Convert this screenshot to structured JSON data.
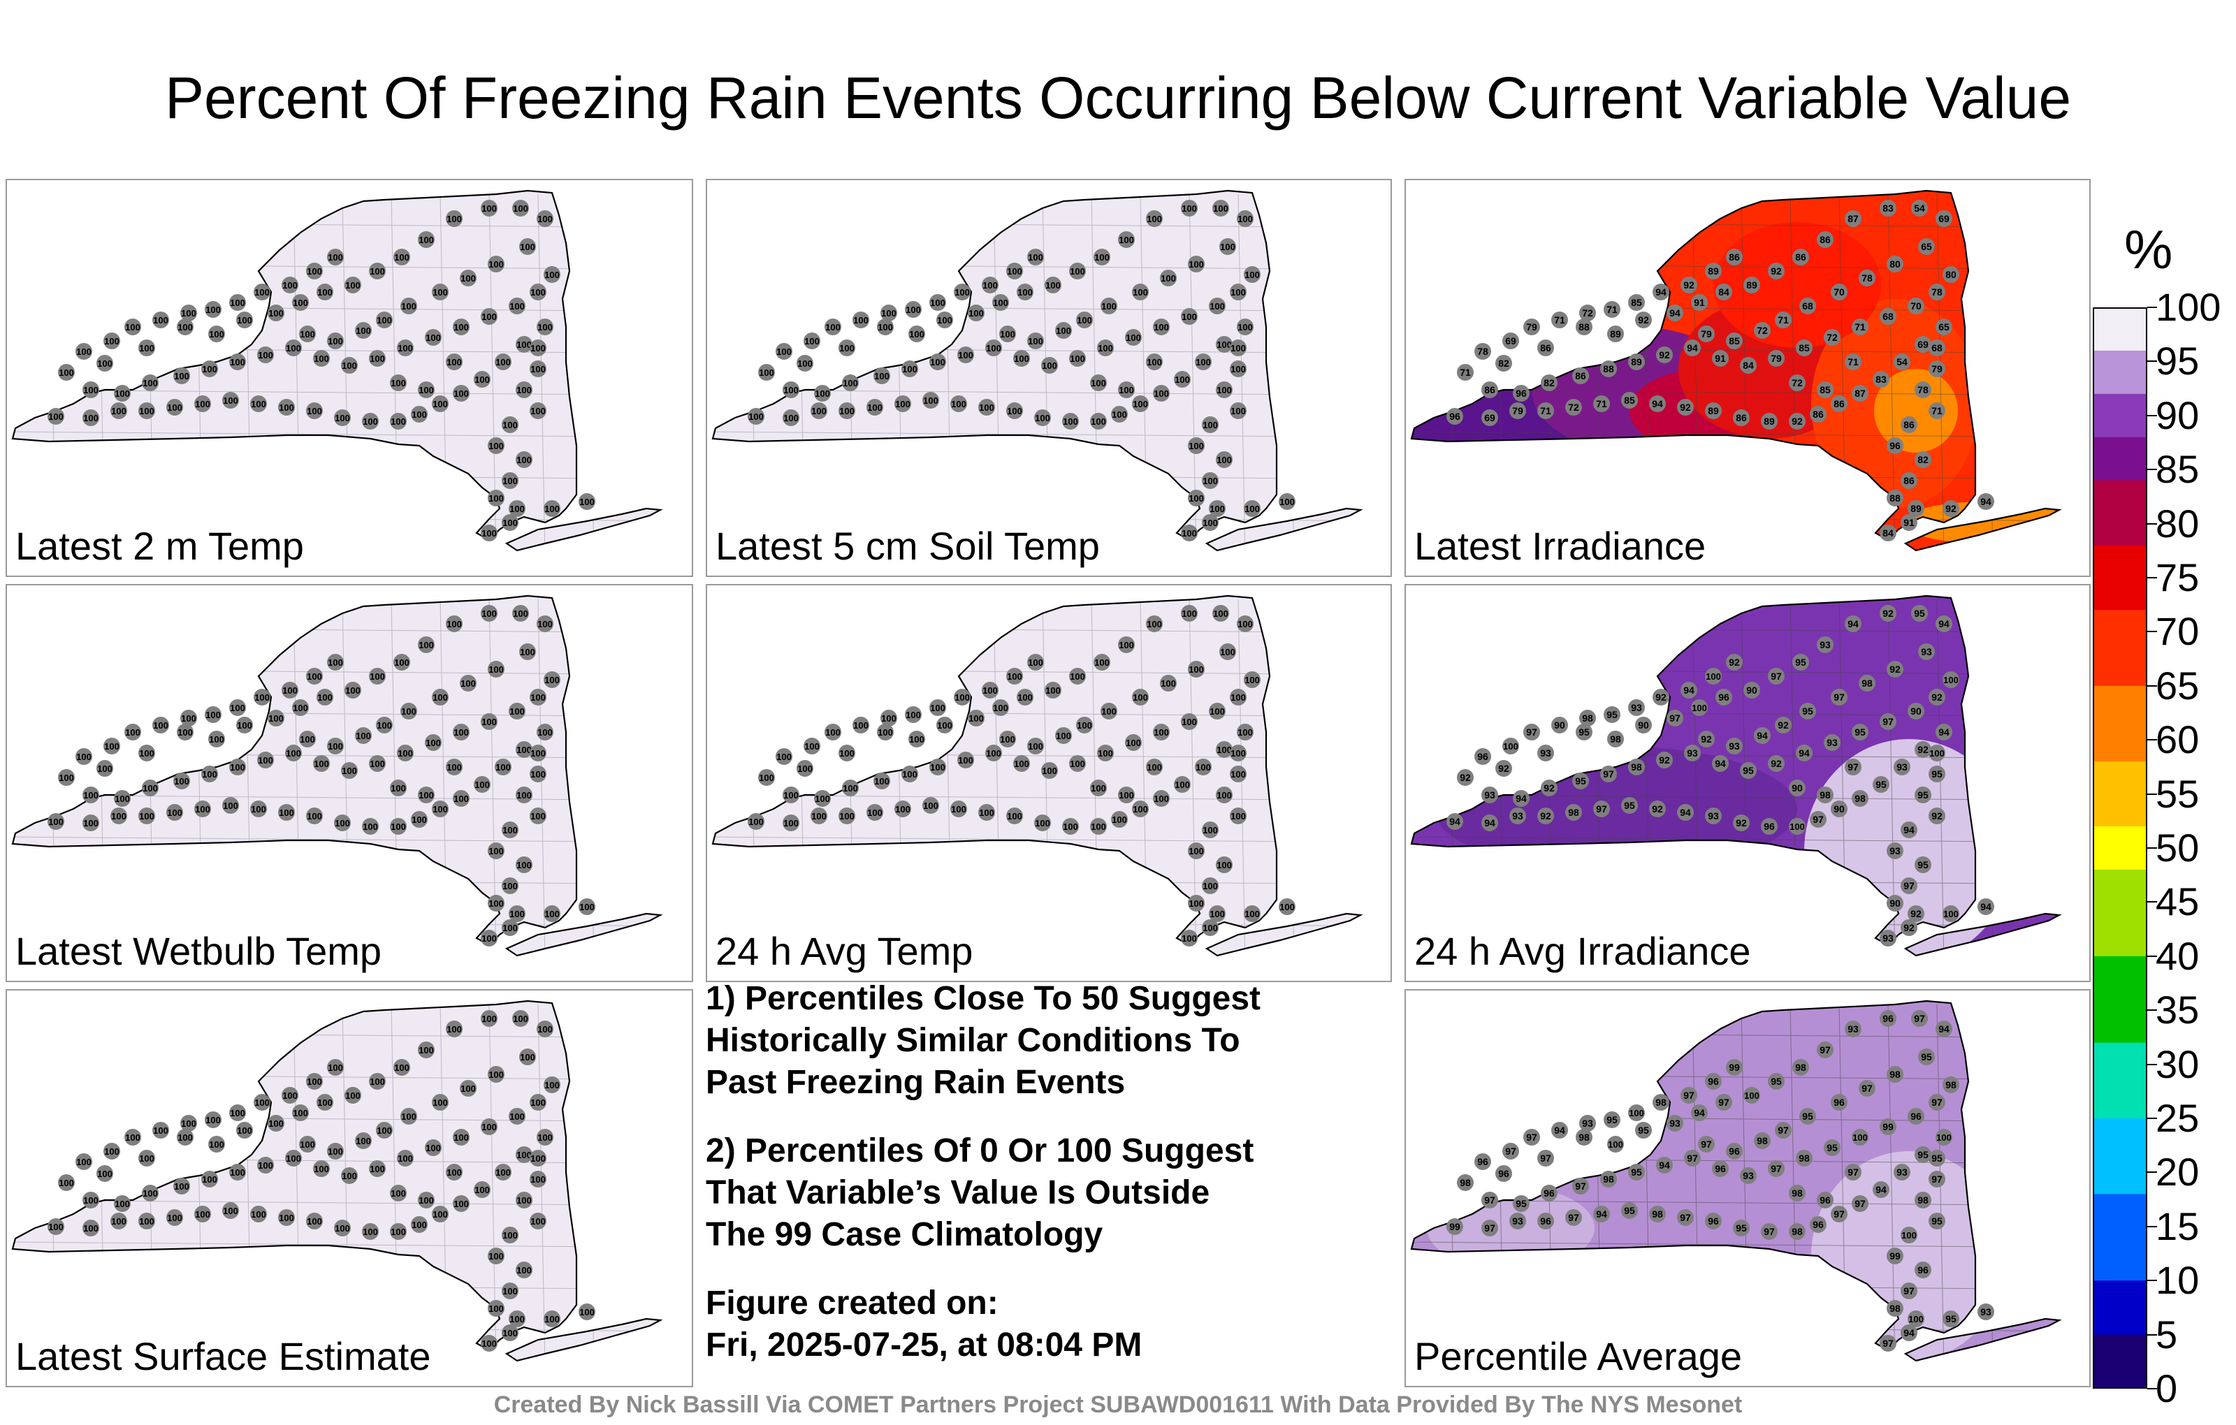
{
  "title": "Percent Of Freezing Rain Events Occurring Below Current Variable Value",
  "panels": [
    {
      "label": "Latest 2 m Temp",
      "fill": "#efe9f3",
      "values": "uniform-100"
    },
    {
      "label": "Latest 5 cm Soil Temp",
      "fill": "#efe9f3",
      "values": "uniform-100"
    },
    {
      "label": "Latest Irradiance",
      "fill": "#ff2a00",
      "values": "irradiance"
    },
    {
      "label": "Latest Wetbulb Temp",
      "fill": "#efe9f3",
      "values": "uniform-100"
    },
    {
      "label": "24 h Avg Temp",
      "fill": "#efe9f3",
      "values": "uniform-100"
    },
    {
      "label": "24 h Avg Irradiance",
      "fill": "#7a34b0",
      "values": "avg-irradiance"
    },
    {
      "label": "Latest Surface Estimate",
      "fill": "#efe9f3",
      "values": "uniform-100"
    },
    {
      "label": "Percentile Average",
      "fill": "#b58fd3",
      "values": "percentile-average"
    }
  ],
  "notes": {
    "note1": "1) Percentiles Close To 50 Suggest\nHistorically Similar Conditions To\nPast Freezing Rain Events",
    "note2": "2) Percentiles Of 0 Or 100 Suggest\nThat Variable’s Value Is Outside\nThe 99 Case Climatology",
    "created_label": "Figure created on:",
    "created_value": "Fri, 2025-07-25, at 08:04 PM"
  },
  "footer": "Created By Nick Bassill Via COMET Partners Project SUBAWD001611 With Data Provided By The NYS Mesonet",
  "colorbar": {
    "unit": "%",
    "min": 0,
    "max": 100,
    "ticks": [
      "100",
      "95",
      "90",
      "85",
      "80",
      "75",
      "70",
      "65",
      "60",
      "55",
      "50",
      "45",
      "40",
      "35",
      "30",
      "25",
      "20",
      "15",
      "10",
      "5",
      "0"
    ]
  },
  "chart_data": [
    {
      "type": "heatmap",
      "title": "Latest 2 m Temp",
      "values_shown": [
        100
      ],
      "note": "all stations 100"
    },
    {
      "type": "heatmap",
      "title": "Latest 5 cm Soil Temp",
      "values_shown": [
        100
      ]
    },
    {
      "type": "heatmap",
      "title": "Latest Irradiance",
      "values_shown": [
        96,
        82,
        86,
        88,
        89,
        92,
        94,
        91,
        84,
        79,
        85,
        72,
        71,
        68,
        70,
        78,
        80,
        65,
        69,
        54,
        83,
        87
      ]
    },
    {
      "type": "heatmap",
      "title": "Latest Wetbulb Temp",
      "values_shown": [
        100
      ]
    },
    {
      "type": "heatmap",
      "title": "24 h Avg Temp",
      "values_shown": [
        100
      ]
    },
    {
      "type": "heatmap",
      "title": "24 h Avg Irradiance",
      "values_shown": [
        94,
        92,
        93,
        95,
        98,
        90,
        97,
        100,
        96
      ]
    },
    {
      "type": "heatmap",
      "title": "Percentile Average",
      "values_shown": [
        99,
        96,
        97,
        98,
        100,
        95,
        93,
        94
      ]
    }
  ]
}
